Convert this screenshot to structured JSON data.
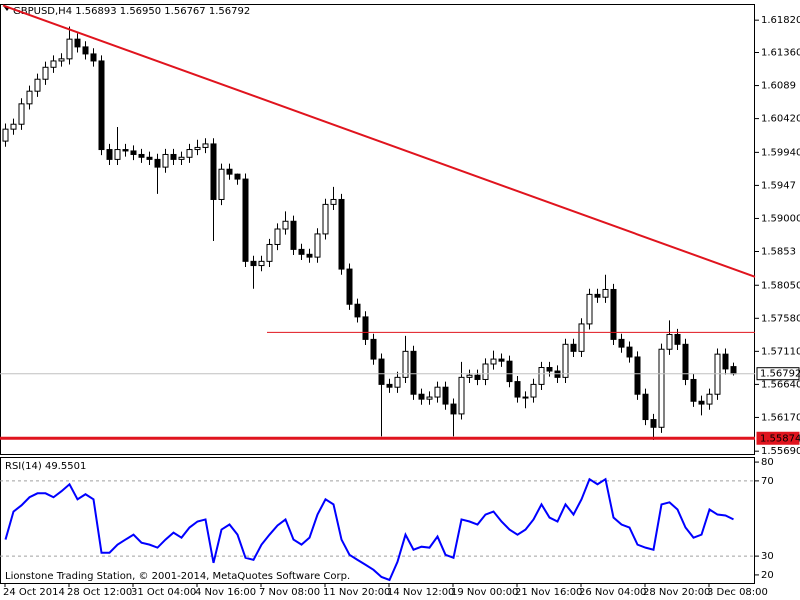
{
  "chart_data": [
    {
      "type": "candlestick",
      "title": "GBPUSD,H4  1.56893 1.56950 1.56767 1.56792",
      "open": [
        1.601,
        1.6027,
        1.6034,
        1.6063,
        1.6081,
        1.6098,
        1.6115,
        1.6124,
        1.6127,
        1.6155,
        1.6144,
        1.6134,
        1.6124,
        1.5998,
        1.5984,
        1.5998,
        1.5996,
        1.5991,
        1.5987,
        1.5984,
        1.5973,
        1.5991,
        1.5984,
        1.5987,
        1.5998,
        1.6001,
        1.6006,
        1.5927,
        1.597,
        1.5963,
        1.5956,
        1.5839,
        1.5833,
        1.5839,
        1.5863,
        1.5885,
        1.5896,
        1.5856,
        1.5849,
        1.5845,
        1.5878,
        1.592,
        1.5927,
        1.5828,
        1.5778,
        1.576,
        1.5728,
        1.57,
        1.5664,
        1.566,
        1.5674,
        1.5711,
        1.565,
        1.5643,
        1.5646,
        1.566,
        1.5636,
        1.5622,
        1.5674,
        1.5677,
        1.5671,
        1.5693,
        1.57,
        1.5697,
        1.5668,
        1.5646,
        1.5646,
        1.5664,
        1.5688,
        1.5683,
        1.5674,
        1.5721,
        1.5711,
        1.575,
        1.5792,
        1.5788,
        1.5799,
        1.5728,
        1.5717,
        1.5703,
        1.565,
        1.5614,
        1.5603,
        1.5714,
        1.5735,
        1.5721,
        1.5671,
        1.564,
        1.5636,
        1.565,
        1.5707,
        1.56893
      ],
      "high": [
        1.6035,
        1.6042,
        1.6071,
        1.6089,
        1.6106,
        1.6123,
        1.6132,
        1.6135,
        1.6173,
        1.6163,
        1.6152,
        1.6142,
        1.6132,
        1.6006,
        1.603,
        1.6006,
        1.6004,
        1.5999,
        1.5995,
        1.5992,
        1.5999,
        1.5999,
        1.5995,
        1.6006,
        1.6012,
        1.6014,
        1.6014,
        1.5978,
        1.5978,
        1.5964,
        1.5964,
        1.5847,
        1.5847,
        1.5871,
        1.5893,
        1.591,
        1.5904,
        1.5864,
        1.5857,
        1.5886,
        1.5928,
        1.5945,
        1.5935,
        1.5836,
        1.5786,
        1.5768,
        1.5736,
        1.5708,
        1.5672,
        1.5682,
        1.5733,
        1.5719,
        1.5658,
        1.5654,
        1.5668,
        1.5668,
        1.5644,
        1.5696,
        1.5685,
        1.5685,
        1.5701,
        1.5712,
        1.5708,
        1.5705,
        1.5676,
        1.5654,
        1.5672,
        1.5696,
        1.5696,
        1.5691,
        1.5729,
        1.5729,
        1.5758,
        1.58,
        1.58,
        1.582,
        1.5807,
        1.5736,
        1.5725,
        1.5711,
        1.5658,
        1.5622,
        1.5722,
        1.5755,
        1.5743,
        1.5729,
        1.5679,
        1.5648,
        1.5658,
        1.5715,
        1.5715,
        1.5695
      ],
      "low": [
        1.6002,
        1.6019,
        1.6026,
        1.6055,
        1.6073,
        1.609,
        1.6107,
        1.6116,
        1.6119,
        1.6136,
        1.6126,
        1.6116,
        1.599,
        1.5976,
        1.5976,
        1.5988,
        1.5983,
        1.5979,
        1.5976,
        1.5935,
        1.5965,
        1.5976,
        1.5976,
        1.5979,
        1.599,
        1.5993,
        1.5868,
        1.5919,
        1.5955,
        1.5948,
        1.5831,
        1.58,
        1.5825,
        1.5831,
        1.5855,
        1.5877,
        1.5848,
        1.5841,
        1.5837,
        1.5837,
        1.587,
        1.5912,
        1.582,
        1.577,
        1.5752,
        1.572,
        1.5692,
        1.559,
        1.5652,
        1.5652,
        1.5666,
        1.5642,
        1.5635,
        1.5635,
        1.5638,
        1.5628,
        1.559,
        1.5614,
        1.5666,
        1.5663,
        1.5663,
        1.5685,
        1.5689,
        1.566,
        1.5638,
        1.563,
        1.5638,
        1.5656,
        1.5675,
        1.5666,
        1.5666,
        1.5703,
        1.5703,
        1.5742,
        1.578,
        1.578,
        1.572,
        1.5709,
        1.5695,
        1.5642,
        1.5606,
        1.5585,
        1.5595,
        1.5706,
        1.5713,
        1.5663,
        1.5632,
        1.562,
        1.5628,
        1.5642,
        1.5678,
        1.56767
      ],
      "close": [
        1.6027,
        1.6034,
        1.6063,
        1.6081,
        1.6098,
        1.6115,
        1.6124,
        1.6127,
        1.6155,
        1.6144,
        1.6134,
        1.6124,
        1.5998,
        1.5984,
        1.5998,
        1.5996,
        1.5991,
        1.5987,
        1.5984,
        1.5973,
        1.5991,
        1.5984,
        1.5987,
        1.5998,
        1.6001,
        1.6006,
        1.5927,
        1.597,
        1.5963,
        1.5956,
        1.5839,
        1.5833,
        1.5839,
        1.5863,
        1.5885,
        1.5896,
        1.5856,
        1.5849,
        1.5845,
        1.5878,
        1.592,
        1.5927,
        1.5828,
        1.5778,
        1.576,
        1.5728,
        1.57,
        1.5664,
        1.566,
        1.5674,
        1.5711,
        1.565,
        1.5643,
        1.5646,
        1.566,
        1.5636,
        1.5622,
        1.5674,
        1.5677,
        1.5671,
        1.5693,
        1.57,
        1.5697,
        1.5668,
        1.5646,
        1.5646,
        1.5664,
        1.5688,
        1.5683,
        1.5674,
        1.5721,
        1.5711,
        1.575,
        1.5792,
        1.5788,
        1.5799,
        1.5728,
        1.5717,
        1.5703,
        1.565,
        1.5614,
        1.5603,
        1.5714,
        1.5735,
        1.5721,
        1.5671,
        1.564,
        1.5636,
        1.565,
        1.5707,
        1.5686,
        1.56792
      ],
      "up_color": "#ffffff",
      "down_color": "#000000",
      "xlim": [
        -0.625,
        93.75
      ],
      "ylim": [
        1.5565,
        1.6205
      ],
      "yticks": [
        {
          "value": 1.6182,
          "label": "1.61820"
        },
        {
          "value": 1.6136,
          "label": "1.61360"
        },
        1.6089,
        {
          "value": 1.6042,
          "label": "1.60420"
        },
        {
          "value": 1.5994,
          "label": "1.59940"
        },
        1.5947,
        {
          "value": 1.59,
          "label": "1.59000"
        },
        1.5853,
        {
          "value": 1.5805,
          "label": "1.58050"
        },
        {
          "value": 1.5758,
          "label": "1.57580"
        },
        {
          "value": 1.5711,
          "label": "1.57110"
        },
        {
          "value": 1.5664,
          "label": "1.56640"
        },
        {
          "value": 1.5617,
          "label": "1.56170"
        },
        {
          "value": 1.5569,
          "label": "1.55690"
        }
      ],
      "trendlines": [
        {
          "x": [
            -0.25,
            93.75
          ],
          "y": [
            1.6203,
            1.5817
          ],
          "color": "#e0141e",
          "width": 2
        },
        {
          "x": [
            32.75,
            93.75
          ],
          "y": [
            1.5738,
            1.5738
          ],
          "color": "#e0141e",
          "width": 1
        }
      ],
      "price_lines": [
        {
          "value": 1.56792,
          "color": "#c0c0c0",
          "width": 1
        },
        {
          "value": 1.55874,
          "color": "#e0141e",
          "width": 3
        }
      ]
    },
    {
      "type": "line",
      "title": "RSI(14) 49.5501",
      "values": [
        38.8,
        53.7,
        57.0,
        61.3,
        63.4,
        63.4,
        61.3,
        64.5,
        68.2,
        60.2,
        62.9,
        60.2,
        31.8,
        31.8,
        36.1,
        38.8,
        41.4,
        37.1,
        36.1,
        34.5,
        38.8,
        42.5,
        39.8,
        45.2,
        48.4,
        49.5,
        26.4,
        44.1,
        46.8,
        41.4,
        29.1,
        28.0,
        36.1,
        41.4,
        46.3,
        49.5,
        38.8,
        36.1,
        39.8,
        52.1,
        60.2,
        57.5,
        38.8,
        30.7,
        28.0,
        25.4,
        22.7,
        18.9,
        17.3,
        27.0,
        41.4,
        33.4,
        35.0,
        34.5,
        40.4,
        30.7,
        29.1,
        49.5,
        48.4,
        46.8,
        52.1,
        53.7,
        48.4,
        44.1,
        41.4,
        44.1,
        49.5,
        57.5,
        50.5,
        48.4,
        57.5,
        52.1,
        60.2,
        70.9,
        68.2,
        70.9,
        50.5,
        46.8,
        45.2,
        36.1,
        34.5,
        33.4,
        57.5,
        58.6,
        54.8,
        45.2,
        39.8,
        41.4,
        54.8,
        52.1,
        51.6,
        49.5501
      ],
      "color": "#0000ff",
      "xlim": [
        -0.625,
        93.75
      ],
      "ylim": [
        15.7,
        82.7
      ],
      "yticks": [
        80,
        70,
        30,
        20
      ],
      "levels": [
        70,
        30
      ],
      "xticks": [
        {
          "value": 0,
          "label": "24 Oct 2014"
        },
        {
          "value": 8,
          "label": "28 Oct 12:00"
        },
        {
          "value": 16,
          "label": "31 Oct 04:00"
        },
        {
          "value": 24,
          "label": "4 Nov 16:00"
        },
        {
          "value": 32,
          "label": "7 Nov 08:00"
        },
        {
          "value": 40,
          "label": "11 Nov 20:00"
        },
        {
          "value": 48,
          "label": "14 Nov 12:00"
        },
        {
          "value": 56,
          "label": "19 Nov 00:00"
        },
        {
          "value": 64,
          "label": "21 Nov 16:00"
        },
        {
          "value": 72,
          "label": "26 Nov 04:00"
        },
        {
          "value": 80,
          "label": "28 Nov 20:00"
        },
        {
          "value": 88,
          "label": "3 Dec 08:00"
        }
      ],
      "annotation": "Lionstone Trading Station, © 2001-2014, MetaQuotes Software Corp."
    }
  ]
}
